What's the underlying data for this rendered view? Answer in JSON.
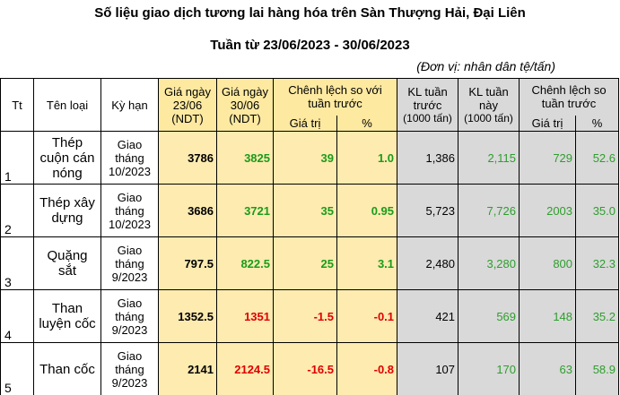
{
  "title": "Số liệu giao dịch tương lai hàng hóa trên Sàn Thượng Hải, Đại Liên",
  "subtitle": "Tuần từ 23/06/2023 - 30/06/2023",
  "unit": "(Đơn vị: nhân dân tệ/tấn)",
  "headers": {
    "tt": "Tt",
    "name": "Tên loại",
    "term": "Kỳ hạn",
    "price1_l1": "Giá ngày",
    "price1_l2": "23/06",
    "price1_l3": "(NDT)",
    "price2_l1": "Giá ngày",
    "price2_l2": "30/06",
    "price2_l3": "(NDT)",
    "diff_l1": "Chênh lệch so với",
    "diff_l2": "tuần trước",
    "diff_value": "Giá trị",
    "diff_pct": "%",
    "vol_prev_l1": "KL tuần",
    "vol_prev_l2": "trước",
    "vol_prev_l3": "(1000 tấn)",
    "vol_cur_l1": "KL tuần",
    "vol_cur_l2": "này",
    "vol_cur_l3": "(1000 tấn)",
    "vdiff_l1": "Chênh lệch so",
    "vdiff_l2": "tuần trước",
    "vdiff_value": "Giá trị",
    "vdiff_pct": "%"
  },
  "rows": [
    {
      "tt": "1",
      "name": "Thép cuộn cán nóng",
      "term": "Giao tháng 10/2023",
      "p1": "3786",
      "p2": "3825",
      "diff": "39",
      "pct": "1.0",
      "volPrev": "1,386",
      "volCur": "2,115",
      "vdiff": "729",
      "vpct": "52.6",
      "trend": "up"
    },
    {
      "tt": "2",
      "name": "Thép xây dựng",
      "term": "Giao tháng 10/2023",
      "p1": "3686",
      "p2": "3721",
      "diff": "35",
      "pct": "0.95",
      "volPrev": "5,723",
      "volCur": "7,726",
      "vdiff": "2003",
      "vpct": "35.0",
      "trend": "up"
    },
    {
      "tt": "3",
      "name": "Quặng sắt",
      "term": "Giao tháng 9/2023",
      "p1": "797.5",
      "p2": "822.5",
      "diff": "25",
      "pct": "3.1",
      "volPrev": "2,480",
      "volCur": "3,280",
      "vdiff": "800",
      "vpct": "32.3",
      "trend": "up"
    },
    {
      "tt": "4",
      "name": "Than luyện cốc",
      "term": "Giao tháng 9/2023",
      "p1": "1352.5",
      "p2": "1351",
      "diff": "-1.5",
      "pct": "-0.1",
      "volPrev": "421",
      "volCur": "569",
      "vdiff": "148",
      "vpct": "35.2",
      "trend": "down"
    },
    {
      "tt": "5",
      "name": "Than cốc",
      "term": "Giao tháng 9/2023",
      "p1": "2141",
      "p2": "2124.5",
      "diff": "-16.5",
      "pct": "-0.8",
      "volPrev": "107",
      "volCur": "170",
      "vdiff": "63",
      "vpct": "58.9",
      "trend": "down"
    }
  ],
  "colors": {
    "up": "#1a9c1a",
    "down": "#e00000",
    "volume_green": "#2e9e2e",
    "yellow": "#fdebb0",
    "gray": "#d9d9d9"
  }
}
